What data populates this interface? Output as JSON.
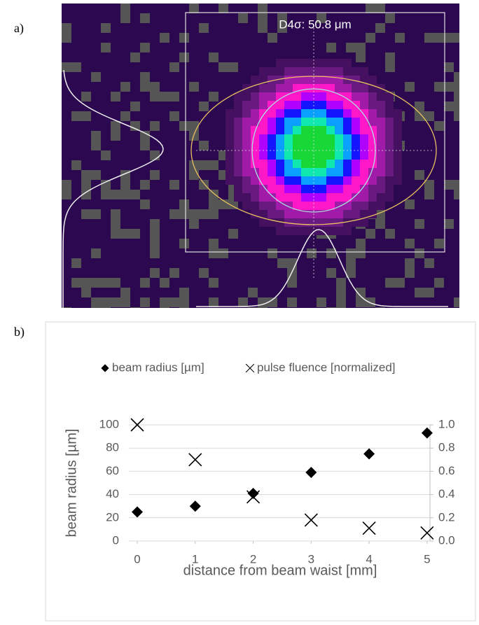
{
  "panels": {
    "a": {
      "label": "a)",
      "annotation": "D4σ: 50.8 μm"
    },
    "b": {
      "label": "b)"
    }
  },
  "chart_data": {
    "type": "scatter",
    "x_label": "distance from beam waist [mm]",
    "y_label": "beam radius [µm]",
    "x": [
      0,
      1,
      2,
      3,
      4,
      5
    ],
    "xlim": [
      -0.15,
      5.05
    ],
    "xticks": [
      0,
      1,
      2,
      3,
      4,
      5
    ],
    "ylim": [
      0,
      100
    ],
    "yticks": [
      0,
      20,
      40,
      60,
      80,
      100
    ],
    "y2lim": [
      0,
      1
    ],
    "y2ticks": [
      {
        "value": 0,
        "label": "0.0"
      },
      0.2,
      0.4,
      0.6,
      0.8,
      {
        "value": 1,
        "label": "1.0"
      }
    ],
    "grid": true,
    "legend": "top",
    "series": [
      {
        "name": "beam radius [µm]",
        "color": "#000000",
        "marker": "diamond",
        "values": [
          25,
          30,
          41,
          59,
          75,
          93
        ]
      },
      {
        "name": "pulse fluence [normalized]",
        "color": "#000000",
        "marker": "x",
        "axis": "y2",
        "values": [
          1.0,
          0.7,
          0.38,
          0.18,
          0.11,
          0.07
        ]
      }
    ]
  }
}
